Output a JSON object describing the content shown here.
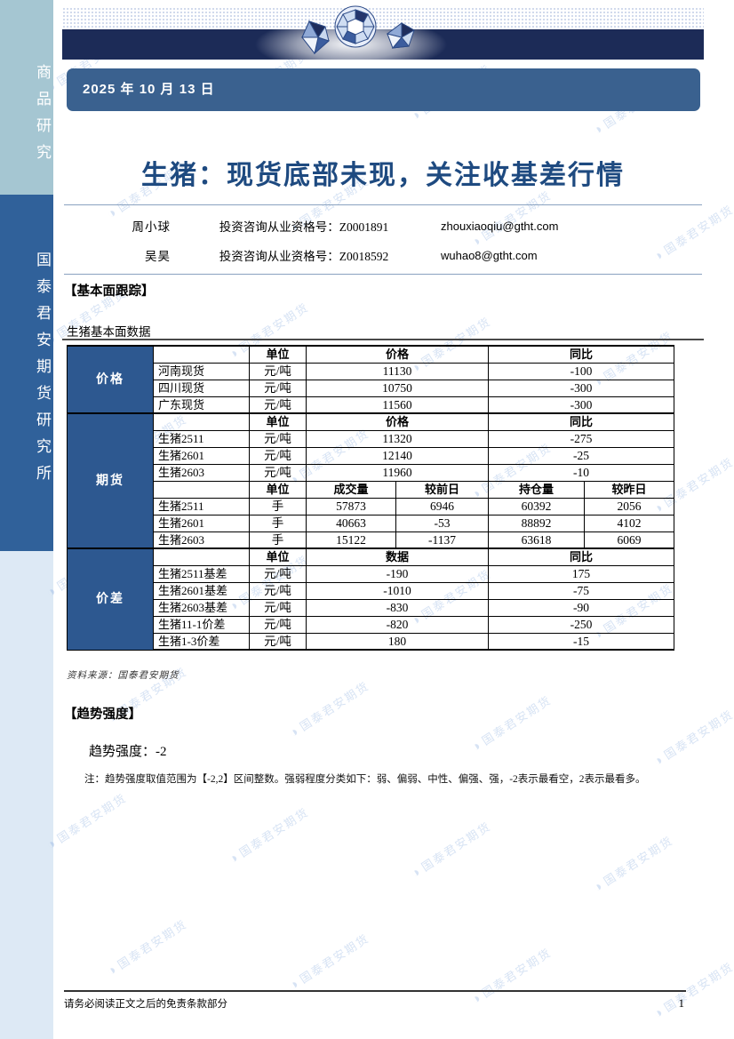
{
  "sidebar": {
    "top_label": "商品研究",
    "bottom_label": "国泰君安期货研究所"
  },
  "header": {
    "date": "2025 年 10 月 13 日"
  },
  "title": "生猪：现货底部未现，关注收基差行情",
  "authors": [
    {
      "name": "周小球",
      "cert": "投资咨询从业资格号：Z0001891",
      "email": "zhouxiaoqiu@gtht.com"
    },
    {
      "name": "吴昊",
      "cert": "投资咨询从业资格号：Z0018592",
      "email": "wuhao8@gtht.com"
    }
  ],
  "sections": {
    "fundamentals_heading": "【基本面跟踪】",
    "table_caption": "生猪基本面数据",
    "source": "资料来源：国泰君安期货",
    "trend_heading": "【趋势强度】",
    "trend_value_line": "趋势强度：-2",
    "trend_note": "注：趋势强度取值范围为【-2,2】区间整数。强弱程度分类如下：弱、偏弱、中性、偏强、强，-2表示最看空，2表示最看多。"
  },
  "table": {
    "categories": {
      "price": "价格",
      "futures": "期货",
      "spread": "价差"
    },
    "headers": {
      "unit": "单位",
      "price": "价格",
      "yoy": "同比",
      "data": "数据",
      "volume": "成交量",
      "vs_prev": "较前日",
      "oi": "持仓量",
      "vs_yday": "较昨日"
    },
    "spot_rows": [
      {
        "name": "河南现货",
        "unit": "元/吨",
        "value": "11130",
        "yoy": "-100"
      },
      {
        "name": "四川现货",
        "unit": "元/吨",
        "value": "10750",
        "yoy": "-300"
      },
      {
        "name": "广东现货",
        "unit": "元/吨",
        "value": "11560",
        "yoy": "-300"
      }
    ],
    "futures_price_rows": [
      {
        "name": "生猪2511",
        "unit": "元/吨",
        "value": "11320",
        "yoy": "-275"
      },
      {
        "name": "生猪2601",
        "unit": "元/吨",
        "value": "12140",
        "yoy": "-25"
      },
      {
        "name": "生猪2603",
        "unit": "元/吨",
        "value": "11960",
        "yoy": "-10"
      }
    ],
    "futures_volume_rows": [
      {
        "name": "生猪2511",
        "unit": "手",
        "volume": "57873",
        "vs_prev": "6946",
        "oi": "60392",
        "vs_yday": "2056"
      },
      {
        "name": "生猪2601",
        "unit": "手",
        "volume": "40663",
        "vs_prev": "-53",
        "oi": "88892",
        "vs_yday": "4102"
      },
      {
        "name": "生猪2603",
        "unit": "手",
        "volume": "15122",
        "vs_prev": "-1137",
        "oi": "63618",
        "vs_yday": "6069"
      }
    ],
    "spread_rows": [
      {
        "name": "生猪2511基差",
        "unit": "元/吨",
        "value": "-190",
        "yoy": "175"
      },
      {
        "name": "生猪2601基差",
        "unit": "元/吨",
        "value": "-1010",
        "yoy": "-75"
      },
      {
        "name": "生猪2603基差",
        "unit": "元/吨",
        "value": "-830",
        "yoy": "-90"
      },
      {
        "name": "生猪11-1价差",
        "unit": "元/吨",
        "value": "-820",
        "yoy": "-250"
      },
      {
        "name": "生猪1-3价差",
        "unit": "元/吨",
        "value": "180",
        "yoy": "-15"
      }
    ]
  },
  "footer": {
    "disclaimer": "请务必阅读正文之后的免责条款部分",
    "page": "1"
  },
  "watermark": {
    "text": "国泰君安期货",
    "logo_glyph": "◑"
  },
  "colors": {
    "navy_bar": "#1c2b57",
    "date_box": "#3a618f",
    "sidebar_top": "#a5c6d2",
    "sidebar_mid": "#30619a",
    "sidebar_bottom": "#dde9f5",
    "table_category": "#2d5890",
    "title_text": "#1e4a80",
    "divider": "#8aa2c0",
    "watermark": "#7aa2da4d"
  }
}
